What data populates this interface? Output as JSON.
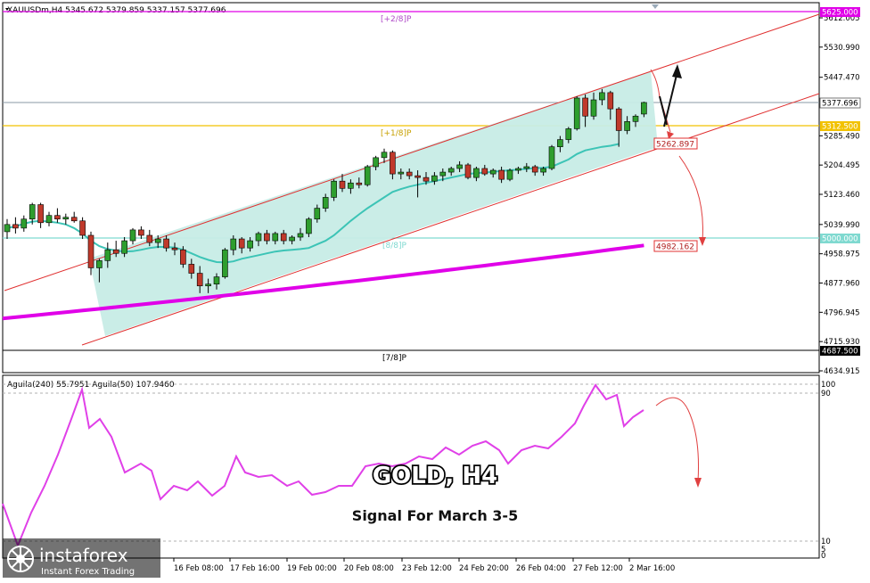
{
  "header": {
    "symbol_line": "XAUUSDm,H4  5345.672 5379.859 5337.157 5377.696"
  },
  "main_price_scale": [
    {
      "label": "5612.005",
      "value": 5612.005
    },
    {
      "label": "5530.990",
      "value": 5530.99
    },
    {
      "label": "5447.470",
      "value": 5447.47
    },
    {
      "label": "5285.490",
      "value": 5285.49
    },
    {
      "label": "5204.495",
      "value": 5204.495
    },
    {
      "label": "5123.460",
      "value": 5123.46
    },
    {
      "label": "5039.990",
      "value": 5039.99
    },
    {
      "label": "4958.975",
      "value": 4958.975
    },
    {
      "label": "4877.960",
      "value": 4877.96
    },
    {
      "label": "4796.945",
      "value": 4796.945
    },
    {
      "label": "4715.930",
      "value": 4715.93
    },
    {
      "label": "4634.915",
      "value": 4634.915
    }
  ],
  "price_tags": {
    "top": "5625.000",
    "current": "5377.696",
    "plus_one_eighth": "5312.500",
    "zero_eighth": "5000.000",
    "minus": "4687.500",
    "channel_support": "5262.897",
    "sma_level": "4982.162"
  },
  "murrey_labels": {
    "plus_two": "[+2/8]P",
    "plus_one": "[+1/8]P",
    "zero": "[8/8]P",
    "seven": "[7/8]P"
  },
  "oscillator": {
    "title": "Aguila(240) 55.7951  Aguila(50) 107.9460",
    "scale": [
      "100",
      "90",
      "10",
      "5",
      "0"
    ]
  },
  "time_labels": [
    "16 Feb 08:00",
    "17 Feb 16:00",
    "19 Feb 00:00",
    "20 Feb 08:00",
    "23 Feb 12:00",
    "24 Feb 20:00",
    "26 Feb 04:00",
    "27 Feb 12:00",
    "2 Mar 16:00"
  ],
  "watermark": {
    "title": "GOLD, H4",
    "subtitle": "Signal For March 3-5"
  },
  "brand": {
    "name": "instaforex",
    "tagline": "Instant Forex Trading"
  },
  "colors": {
    "up": "#2e9e2e",
    "down": "#c0392b",
    "channel_fill": "#c7ece6",
    "channel_line": "#e03030",
    "sma_fast": "#3cc4b6",
    "sma_slow": "#e000e8",
    "osc": "#e040e8",
    "yellow": "#f2c200",
    "accent_arrow": "#e04040"
  },
  "chart_data": {
    "type": "candlestick",
    "timeframe": "H4",
    "symbol": "XAUUSDm",
    "ylim": [
      4634.915,
      5625
    ],
    "candles": [
      {
        "o": 5020,
        "h": 5055,
        "l": 5000,
        "c": 5040
      },
      {
        "o": 5040,
        "h": 5060,
        "l": 5015,
        "c": 5030
      },
      {
        "o": 5030,
        "h": 5065,
        "l": 5020,
        "c": 5055
      },
      {
        "o": 5055,
        "h": 5100,
        "l": 5040,
        "c": 5095
      },
      {
        "o": 5095,
        "h": 5100,
        "l": 5030,
        "c": 5045
      },
      {
        "o": 5045,
        "h": 5075,
        "l": 5035,
        "c": 5065
      },
      {
        "o": 5065,
        "h": 5085,
        "l": 5045,
        "c": 5055
      },
      {
        "o": 5055,
        "h": 5070,
        "l": 5040,
        "c": 5060
      },
      {
        "o": 5060,
        "h": 5075,
        "l": 5045,
        "c": 5050
      },
      {
        "o": 5050,
        "h": 5060,
        "l": 5000,
        "c": 5010
      },
      {
        "o": 5010,
        "h": 5020,
        "l": 4900,
        "c": 4920
      },
      {
        "o": 4920,
        "h": 4945,
        "l": 4880,
        "c": 4940
      },
      {
        "o": 4940,
        "h": 4990,
        "l": 4920,
        "c": 4970
      },
      {
        "o": 4970,
        "h": 4995,
        "l": 4950,
        "c": 4960
      },
      {
        "o": 4960,
        "h": 5005,
        "l": 4950,
        "c": 4995
      },
      {
        "o": 4995,
        "h": 5030,
        "l": 4985,
        "c": 5025
      },
      {
        "o": 5025,
        "h": 5035,
        "l": 5000,
        "c": 5010
      },
      {
        "o": 5010,
        "h": 5025,
        "l": 4980,
        "c": 4990
      },
      {
        "o": 4990,
        "h": 5010,
        "l": 4975,
        "c": 5000
      },
      {
        "o": 5000,
        "h": 5010,
        "l": 4965,
        "c": 4975
      },
      {
        "o": 4975,
        "h": 4990,
        "l": 4955,
        "c": 4970
      },
      {
        "o": 4970,
        "h": 4980,
        "l": 4920,
        "c": 4930
      },
      {
        "o": 4930,
        "h": 4945,
        "l": 4890,
        "c": 4905
      },
      {
        "o": 4905,
        "h": 4925,
        "l": 4850,
        "c": 4870
      },
      {
        "o": 4870,
        "h": 4890,
        "l": 4850,
        "c": 4875
      },
      {
        "o": 4875,
        "h": 4905,
        "l": 4860,
        "c": 4895
      },
      {
        "o": 4895,
        "h": 4975,
        "l": 4890,
        "c": 4970
      },
      {
        "o": 4970,
        "h": 5010,
        "l": 4955,
        "c": 5000
      },
      {
        "o": 5000,
        "h": 5005,
        "l": 4960,
        "c": 4975
      },
      {
        "o": 4975,
        "h": 5005,
        "l": 4965,
        "c": 4995
      },
      {
        "o": 4995,
        "h": 5020,
        "l": 4980,
        "c": 5015
      },
      {
        "o": 5015,
        "h": 5025,
        "l": 4985,
        "c": 4995
      },
      {
        "o": 4995,
        "h": 5020,
        "l": 4985,
        "c": 5015
      },
      {
        "o": 5015,
        "h": 5025,
        "l": 4985,
        "c": 4995
      },
      {
        "o": 4995,
        "h": 5010,
        "l": 4985,
        "c": 5005
      },
      {
        "o": 5005,
        "h": 5030,
        "l": 4995,
        "c": 5015
      },
      {
        "o": 5015,
        "h": 5060,
        "l": 5005,
        "c": 5055
      },
      {
        "o": 5055,
        "h": 5095,
        "l": 5045,
        "c": 5085
      },
      {
        "o": 5085,
        "h": 5125,
        "l": 5075,
        "c": 5115
      },
      {
        "o": 5115,
        "h": 5165,
        "l": 5105,
        "c": 5160
      },
      {
        "o": 5160,
        "h": 5180,
        "l": 5130,
        "c": 5140
      },
      {
        "o": 5140,
        "h": 5165,
        "l": 5125,
        "c": 5155
      },
      {
        "o": 5155,
        "h": 5170,
        "l": 5140,
        "c": 5150
      },
      {
        "o": 5150,
        "h": 5205,
        "l": 5145,
        "c": 5200
      },
      {
        "o": 5200,
        "h": 5230,
        "l": 5190,
        "c": 5225
      },
      {
        "o": 5225,
        "h": 5250,
        "l": 5210,
        "c": 5240
      },
      {
        "o": 5240,
        "h": 5245,
        "l": 5165,
        "c": 5180
      },
      {
        "o": 5180,
        "h": 5195,
        "l": 5165,
        "c": 5185
      },
      {
        "o": 5185,
        "h": 5195,
        "l": 5165,
        "c": 5175
      },
      {
        "o": 5175,
        "h": 5190,
        "l": 5115,
        "c": 5170
      },
      {
        "o": 5170,
        "h": 5185,
        "l": 5150,
        "c": 5160
      },
      {
        "o": 5160,
        "h": 5185,
        "l": 5150,
        "c": 5175
      },
      {
        "o": 5175,
        "h": 5195,
        "l": 5160,
        "c": 5185
      },
      {
        "o": 5185,
        "h": 5200,
        "l": 5175,
        "c": 5195
      },
      {
        "o": 5195,
        "h": 5215,
        "l": 5185,
        "c": 5205
      },
      {
        "o": 5205,
        "h": 5210,
        "l": 5165,
        "c": 5170
      },
      {
        "o": 5170,
        "h": 5200,
        "l": 5160,
        "c": 5195
      },
      {
        "o": 5195,
        "h": 5205,
        "l": 5175,
        "c": 5180
      },
      {
        "o": 5180,
        "h": 5195,
        "l": 5170,
        "c": 5190
      },
      {
        "o": 5190,
        "h": 5200,
        "l": 5155,
        "c": 5165
      },
      {
        "o": 5165,
        "h": 5195,
        "l": 5160,
        "c": 5190
      },
      {
        "o": 5190,
        "h": 5200,
        "l": 5180,
        "c": 5195
      },
      {
        "o": 5195,
        "h": 5210,
        "l": 5185,
        "c": 5200
      },
      {
        "o": 5200,
        "h": 5205,
        "l": 5175,
        "c": 5185
      },
      {
        "o": 5185,
        "h": 5200,
        "l": 5175,
        "c": 5195
      },
      {
        "o": 5195,
        "h": 5260,
        "l": 5190,
        "c": 5255
      },
      {
        "o": 5255,
        "h": 5285,
        "l": 5240,
        "c": 5275
      },
      {
        "o": 5275,
        "h": 5310,
        "l": 5265,
        "c": 5305
      },
      {
        "o": 5305,
        "h": 5395,
        "l": 5300,
        "c": 5390
      },
      {
        "o": 5390,
        "h": 5400,
        "l": 5310,
        "c": 5340
      },
      {
        "o": 5340,
        "h": 5405,
        "l": 5330,
        "c": 5385
      },
      {
        "o": 5385,
        "h": 5415,
        "l": 5370,
        "c": 5405
      },
      {
        "o": 5405,
        "h": 5410,
        "l": 5330,
        "c": 5360
      },
      {
        "o": 5360,
        "h": 5365,
        "l": 5255,
        "c": 5300
      },
      {
        "o": 5300,
        "h": 5340,
        "l": 5290,
        "c": 5325
      },
      {
        "o": 5325,
        "h": 5345,
        "l": 5310,
        "c": 5340
      },
      {
        "o": 5345.672,
        "h": 5379.859,
        "l": 5337.157,
        "c": 5377.696
      }
    ],
    "sma_fast": [
      5030,
      5035,
      5042,
      5048,
      5050,
      5048,
      5045,
      5040,
      5030,
      5015,
      4995,
      4980,
      4972,
      4968,
      4965,
      4966,
      4970,
      4975,
      4978,
      4978,
      4976,
      4970,
      4960,
      4950,
      4942,
      4936,
      4935,
      4938,
      4945,
      4950,
      4955,
      4960,
      4965,
      4968,
      4970,
      4972,
      4975,
      4985,
      4995,
      5010,
      5030,
      5050,
      5068,
      5085,
      5100,
      5115,
      5130,
      5138,
      5145,
      5150,
      5155,
      5160,
      5165,
      5170,
      5175,
      5180,
      5182,
      5184,
      5186,
      5188,
      5190,
      5192,
      5194,
      5196,
      5197,
      5200,
      5210,
      5220,
      5235,
      5245,
      5250,
      5255,
      5258,
      5262.897
    ],
    "sma_slow_start": 4780,
    "sma_slow_end": 4982.162
  }
}
